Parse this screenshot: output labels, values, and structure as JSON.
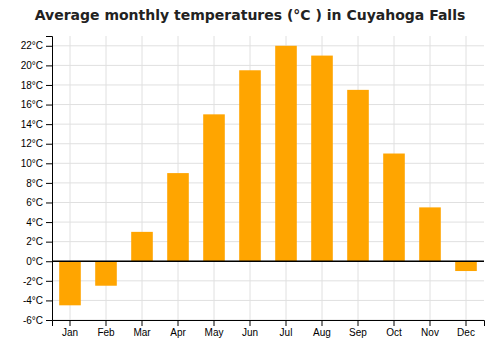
{
  "chart_data": {
    "type": "bar",
    "title": "Average monthly temperatures (°C ) in Cuyahoga Falls",
    "categories": [
      "Jan",
      "Feb",
      "Mar",
      "Apr",
      "May",
      "Jun",
      "Jul",
      "Aug",
      "Sep",
      "Oct",
      "Nov",
      "Dec"
    ],
    "values": [
      -4.5,
      -2.5,
      3.0,
      9.0,
      15.0,
      19.5,
      22.0,
      21.0,
      17.5,
      11.0,
      5.5,
      -1.0
    ],
    "color": "#FFA500",
    "ylim": [
      -6,
      23
    ],
    "yticks": [
      {
        "value": -6,
        "label": "-6°C"
      },
      {
        "value": -4,
        "label": "-4°C"
      },
      {
        "value": -2,
        "label": "-2°C"
      },
      {
        "value": 0,
        "label": "0°C"
      },
      {
        "value": 2,
        "label": "2°C"
      },
      {
        "value": 4,
        "label": "4°C"
      },
      {
        "value": 6,
        "label": "6°C"
      },
      {
        "value": 8,
        "label": "8°C"
      },
      {
        "value": 10,
        "label": "10°C"
      },
      {
        "value": 12,
        "label": "12°C"
      },
      {
        "value": 14,
        "label": "14°C"
      },
      {
        "value": 16,
        "label": "16°C"
      },
      {
        "value": 18,
        "label": "18°C"
      },
      {
        "value": 20,
        "label": "20°C"
      },
      {
        "value": 22,
        "label": "22°C"
      }
    ],
    "grid": true
  }
}
